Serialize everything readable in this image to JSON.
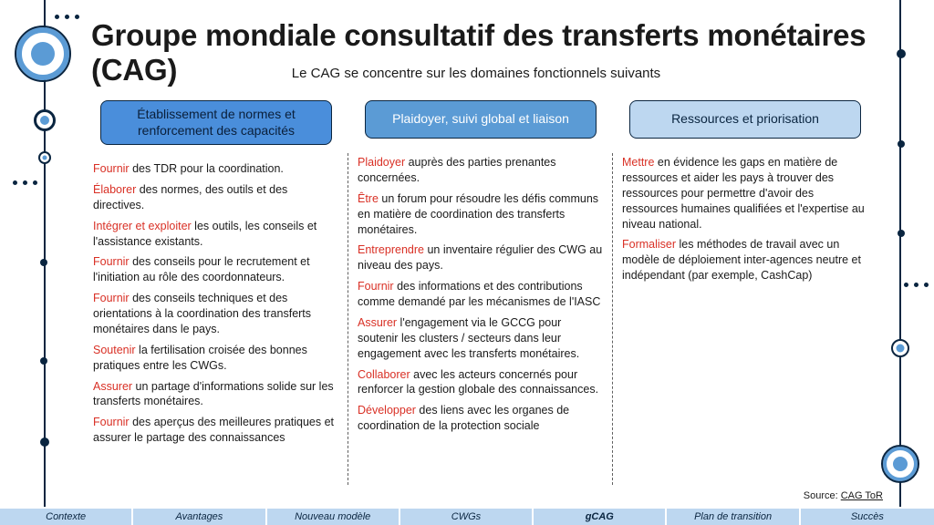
{
  "title": "Groupe mondiale consultatif des transferts monétaires (CAG)",
  "subtitle": "Le CAG se concentre sur les domaines fonctionnels suivants",
  "source_label": "Source: ",
  "source_link": "CAG ToR",
  "colors": {
    "accent_blue": "#5b9bd5",
    "light_blue": "#bdd7f0",
    "mid_blue": "#4a8edb",
    "navy": "#0a2540",
    "verb_red": "#d93025",
    "bg": "#ffffff"
  },
  "columns": [
    {
      "heading": "Établissement de normes et renforcement des capacités",
      "pill_class": "pill-0",
      "items": [
        {
          "verb": "Fournir",
          "rest": " des TDR pour la coordination."
        },
        {
          "verb": "Élaborer",
          "rest": " des normes, des outils et des directives."
        },
        {
          "verb": "Intégrer et exploiter",
          "rest": " les outils, les conseils et l'assistance existants."
        },
        {
          "verb": "Fournir",
          "rest": " des conseils pour le recrutement et l'initiation au rôle des coordonnateurs."
        },
        {
          "verb": "Fournir",
          "rest": " des conseils techniques et des orientations à la coordination des transferts monétaires dans le pays."
        },
        {
          "verb": "Soutenir",
          "rest": " la fertilisation croisée des bonnes pratiques entre les CWGs."
        },
        {
          "verb": "Assurer",
          "rest": " un partage d'informations solide sur les transferts monétaires."
        },
        {
          "verb": "Fournir",
          "rest": " des aperçus des meilleures pratiques et assurer le partage des connaissances"
        }
      ]
    },
    {
      "heading": "Plaidoyer, suivi global et liaison",
      "pill_class": "pill-1",
      "items": [
        {
          "verb": "Plaidoyer",
          "rest": " auprès des parties prenantes concernées."
        },
        {
          "verb": "Être",
          "rest": " un forum pour résoudre les défis communs en matière de coordination des transferts monétaires."
        },
        {
          "verb": "Entreprendre",
          "rest": " un inventaire régulier des CWG au niveau des pays."
        },
        {
          "verb": "Fournir",
          "rest": " des informations et des contributions comme demandé par les mécanismes de l'IASC"
        },
        {
          "verb": "Assurer",
          "rest": " l'engagement via le GCCG pour soutenir les clusters / secteurs dans leur engagement avec les transferts monétaires."
        },
        {
          "verb": "Collaborer",
          "rest": " avec les acteurs concernés pour renforcer la gestion globale des connaissances."
        },
        {
          "verb": "Développer",
          "rest": " des liens avec les organes de coordination de la protection sociale"
        }
      ]
    },
    {
      "heading": "Ressources et priorisation",
      "pill_class": "pill-2",
      "items": [
        {
          "verb": "Mettre",
          "rest": " en évidence les gaps en matière de ressources et aider les pays à trouver des ressources pour permettre d'avoir des ressources humaines qualifiées et l'expertise au niveau national."
        },
        {
          "verb": "Formaliser",
          "rest": " les méthodes de travail avec un modèle de déploiement inter-agences neutre et indépendant (par exemple, CashCap)"
        }
      ]
    }
  ],
  "nav": [
    {
      "label": "Contexte",
      "active": false
    },
    {
      "label": "Avantages",
      "active": false
    },
    {
      "label": "Nouveau modèle",
      "active": false
    },
    {
      "label": "CWGs",
      "active": false
    },
    {
      "label": "gCAG",
      "active": true
    },
    {
      "label": "Plan de transition",
      "active": false
    },
    {
      "label": "Succès",
      "active": false
    }
  ]
}
